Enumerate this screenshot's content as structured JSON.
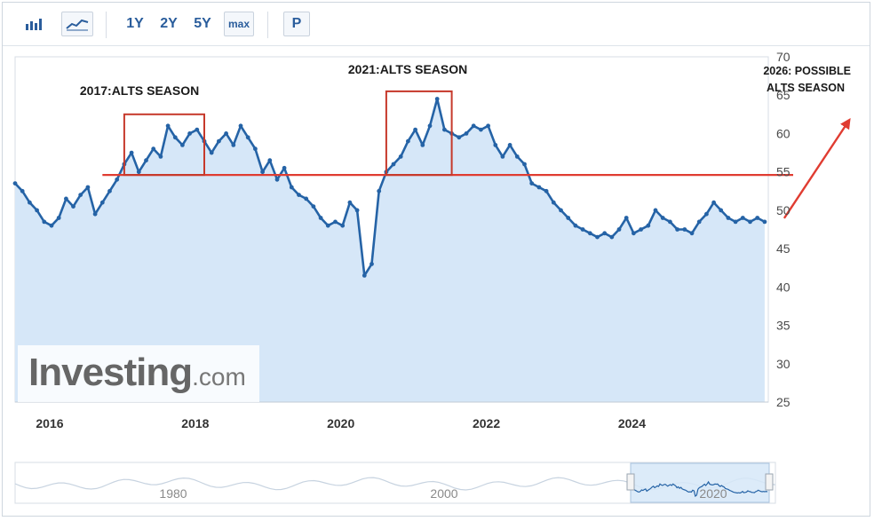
{
  "toolbar": {
    "bar_icon": "bar-chart-icon",
    "line_icon": "line-chart-icon",
    "ranges": [
      "1Y",
      "2Y",
      "5Y",
      "max"
    ],
    "p_label": "P"
  },
  "logo": {
    "main": "Investing",
    "suffix": ".com"
  },
  "colors": {
    "line": "#2563a6",
    "fill": "#d6e7f8",
    "annotation": "#e03c31",
    "box": "#c6392b"
  },
  "navigator": {
    "labels": [
      "1980",
      "2000",
      "2020"
    ]
  },
  "chart_data": {
    "type": "line",
    "title": "",
    "xlabel": "",
    "ylabel": "",
    "ylim": [
      25,
      70
    ],
    "yticks": [
      25,
      30,
      35,
      40,
      45,
      50,
      55,
      60,
      65,
      70
    ],
    "xlim": [
      2015.5,
      2025.85
    ],
    "xticks": [
      2016,
      2018,
      2020,
      2022,
      2024
    ],
    "grid": false,
    "y_axis_side": "right",
    "x": [
      2015.5,
      2015.6,
      2015.7,
      2015.8,
      2015.9,
      2016.0,
      2016.1,
      2016.2,
      2016.3,
      2016.4,
      2016.5,
      2016.6,
      2016.7,
      2016.8,
      2016.9,
      2017.0,
      2017.1,
      2017.2,
      2017.3,
      2017.4,
      2017.5,
      2017.6,
      2017.7,
      2017.8,
      2017.9,
      2018.0,
      2018.1,
      2018.2,
      2018.3,
      2018.4,
      2018.5,
      2018.6,
      2018.7,
      2018.8,
      2018.9,
      2019.0,
      2019.1,
      2019.2,
      2019.3,
      2019.4,
      2019.5,
      2019.6,
      2019.7,
      2019.8,
      2019.9,
      2020.0,
      2020.1,
      2020.2,
      2020.3,
      2020.4,
      2020.5,
      2020.6,
      2020.7,
      2020.8,
      2020.9,
      2021.0,
      2021.1,
      2021.2,
      2021.3,
      2021.4,
      2021.5,
      2021.6,
      2021.7,
      2021.8,
      2021.9,
      2022.0,
      2022.1,
      2022.2,
      2022.3,
      2022.4,
      2022.5,
      2022.6,
      2022.7,
      2022.8,
      2022.9,
      2023.0,
      2023.1,
      2023.2,
      2023.3,
      2023.4,
      2023.5,
      2023.6,
      2023.7,
      2023.8,
      2023.9,
      2024.0,
      2024.1,
      2024.2,
      2024.3,
      2024.4,
      2024.5,
      2024.6,
      2024.7,
      2024.8,
      2024.9,
      2025.0,
      2025.1,
      2025.2,
      2025.3,
      2025.4,
      2025.5,
      2025.6,
      2025.7,
      2025.8
    ],
    "values": [
      53.5,
      52.5,
      51,
      50,
      48.5,
      48,
      49,
      51.5,
      50.5,
      52,
      53,
      49.5,
      51,
      52.5,
      54,
      56,
      57.5,
      55,
      56.5,
      58,
      57,
      61,
      59.5,
      58.5,
      60,
      60.5,
      59,
      57.5,
      59,
      60,
      58.5,
      61,
      59.5,
      58,
      55,
      56.5,
      54,
      55.5,
      53,
      52,
      51.5,
      50.5,
      49,
      48,
      48.5,
      48,
      51,
      50,
      41.5,
      43,
      52.5,
      55,
      56,
      57,
      59,
      60.5,
      58.5,
      61,
      64.5,
      60.5,
      60,
      59.5,
      60,
      61,
      60.5,
      61,
      58.5,
      57,
      58.5,
      57,
      56,
      53.5,
      53,
      52.5,
      51,
      50,
      49,
      48,
      47.5,
      47,
      46.5,
      47,
      46.5,
      47.5,
      49,
      47,
      47.5,
      48,
      50,
      49,
      48.5,
      47.5,
      47.5,
      47,
      48.5,
      49.5,
      51,
      50,
      49,
      48.5,
      49,
      48.5,
      49,
      48.5
    ],
    "reference_line": {
      "y": 54.6,
      "x_start": 2016.7,
      "x_end": 2025.85
    },
    "annotations": [
      {
        "text": "2017:ALTS SEASON",
        "x_range": [
          2017.0,
          2018.1
        ],
        "y_range": [
          54.6,
          62.5
        ]
      },
      {
        "text": "2021:ALTS SEASON",
        "x_range": [
          2020.6,
          2021.5
        ],
        "y_range": [
          54.6,
          65.5
        ]
      }
    ],
    "projection": {
      "text_line1": "2026: POSSIBLE",
      "text_line2": "ALTS SEASON"
    }
  }
}
